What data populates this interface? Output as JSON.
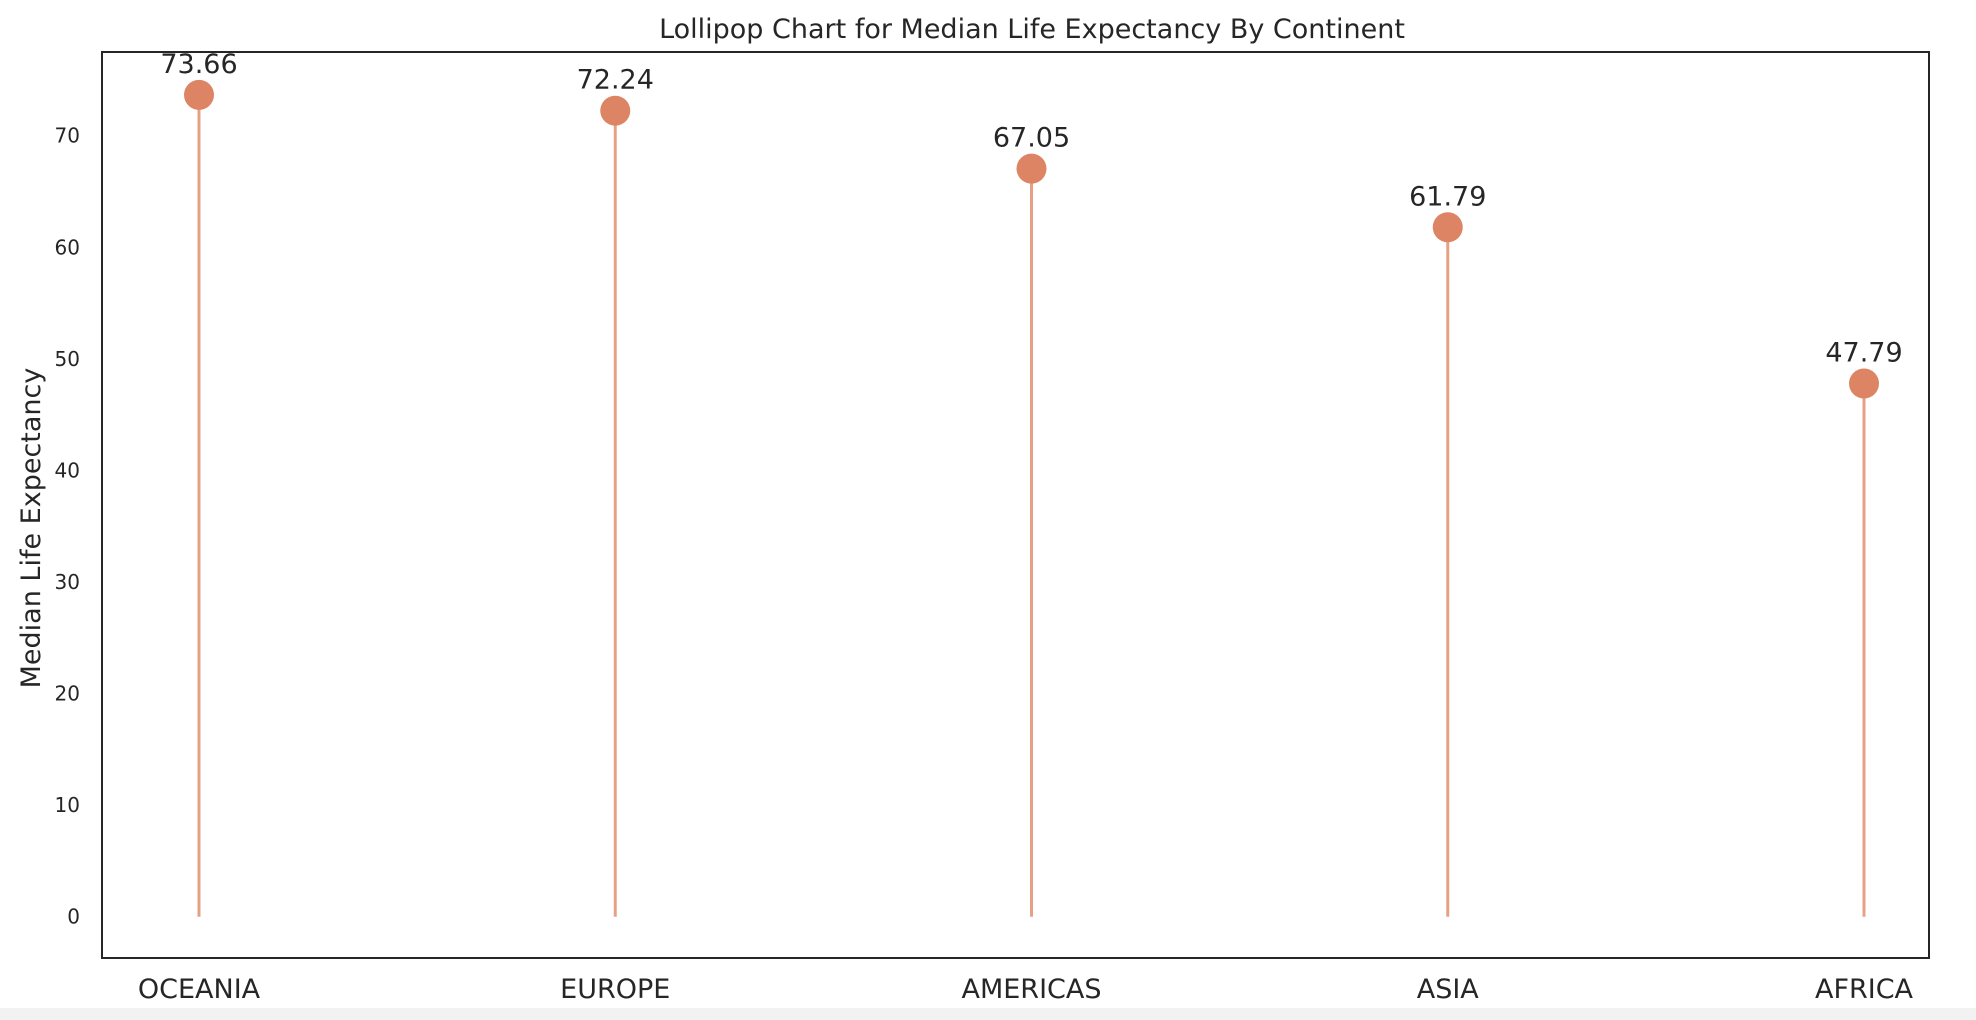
{
  "colors": {
    "stem": "#e8a084",
    "marker": "#dc8463",
    "axes_frame": "#262626",
    "text": "#262626",
    "background": "#ffffff"
  },
  "chart_data": {
    "type": "lollipop",
    "title": "Lollipop Chart for Median Life Expectancy By Continent",
    "xlabel": "",
    "ylabel": "Median Life Expectancy",
    "categories": [
      "OCEANIA",
      "EUROPE",
      "AMERICAS",
      "ASIA",
      "AFRICA"
    ],
    "values": [
      73.66,
      72.24,
      67.05,
      61.79,
      47.79
    ],
    "data_labels": [
      "73.66",
      "72.24",
      "67.05",
      "61.79",
      "47.79"
    ],
    "yticks": [
      0,
      10,
      20,
      30,
      40,
      50,
      60,
      70
    ],
    "ylim": [
      -3.7,
      77.5
    ],
    "grid": false,
    "legend": "none"
  }
}
